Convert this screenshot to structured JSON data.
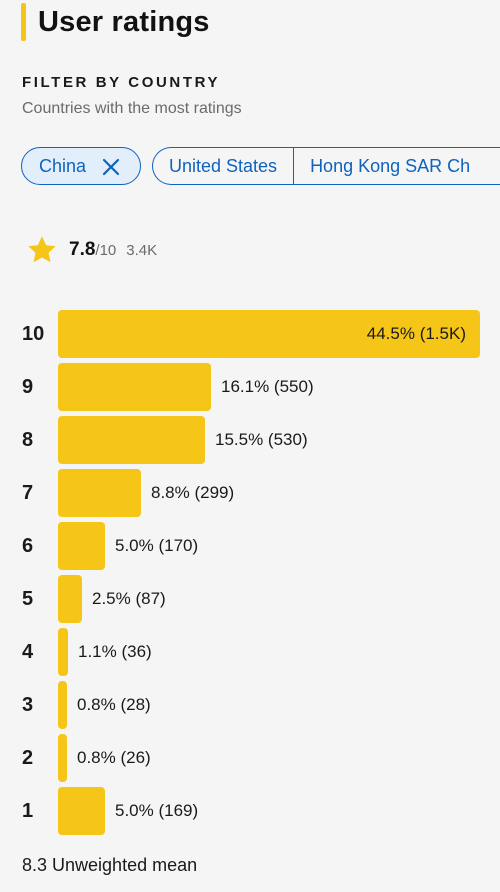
{
  "header": {
    "title": "User ratings"
  },
  "filter": {
    "heading": "FILTER BY COUNTRY",
    "subheading": "Countries with the most ratings",
    "selected_country": "China",
    "countries": [
      "United States",
      "Hong Kong SAR Ch"
    ]
  },
  "summary": {
    "rating": "7.8",
    "max": "/10",
    "count": "3.4K"
  },
  "distribution": [
    {
      "score": "10",
      "percent": 44.5,
      "label": "44.5% (1.5K)"
    },
    {
      "score": "9",
      "percent": 16.1,
      "label": "16.1% (550)"
    },
    {
      "score": "8",
      "percent": 15.5,
      "label": "15.5% (530)"
    },
    {
      "score": "7",
      "percent": 8.8,
      "label": "8.8% (299)"
    },
    {
      "score": "6",
      "percent": 5.0,
      "label": "5.0% (170)"
    },
    {
      "score": "5",
      "percent": 2.5,
      "label": "2.5% (87)"
    },
    {
      "score": "4",
      "percent": 1.1,
      "label": "1.1% (36)"
    },
    {
      "score": "3",
      "percent": 0.8,
      "label": "0.8% (28)"
    },
    {
      "score": "2",
      "percent": 0.8,
      "label": "0.8% (26)"
    },
    {
      "score": "1",
      "percent": 5.0,
      "label": "5.0% (169)"
    }
  ],
  "footer": {
    "mean": "8.3 Unweighted mean"
  },
  "colors": {
    "accent": "#f5c518",
    "link": "#0e63be"
  }
}
